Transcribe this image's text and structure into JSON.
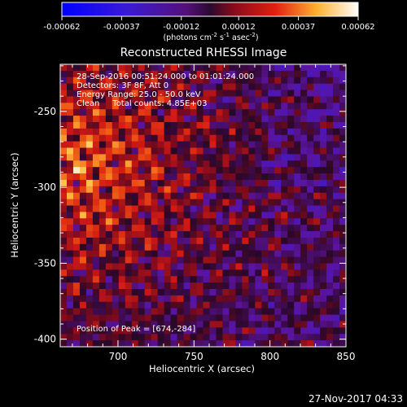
{
  "chart_data": {
    "type": "heatmap",
    "title": "Reconstructed RHESSI Image",
    "xlabel": "Heliocentric X (arcsec)",
    "ylabel": "Heliocentric Y (arcsec)",
    "xlim": [
      662,
      850
    ],
    "ylim": [
      -405,
      -219
    ],
    "xticks": [
      700,
      750,
      800,
      850
    ],
    "yticks": [
      -250,
      -300,
      -350,
      -400
    ],
    "colorbar": {
      "ticks": [
        "-0.00062",
        "-0.00037",
        "-0.00012",
        "0.00012",
        "0.00037",
        "0.00062"
      ],
      "unit_parts": [
        "(photons cm",
        "-2",
        " s",
        "-1",
        " asec",
        "-2",
        ")"
      ],
      "range": [
        -0.00062,
        0.00062
      ]
    },
    "annotations": [
      "28-Sep-2016 00:51:24.000 to 01:01:24.000",
      "Detectors: 3F 8F, Att 0",
      "Energy Range: 25.0 - 50.0 keV",
      "Clean     Total counts: 4.85E+03"
    ],
    "peak_text": "Position of Peak = [674,-284]",
    "peak": [
      674,
      -284
    ]
  },
  "footer": {
    "timestamp": "27-Nov-2017 04:33"
  },
  "colors": {
    "colorbar_low": "#0000ff",
    "colorbar_mid": "#440066",
    "colorbar_high": "#ffffff",
    "frame": "#ffffff"
  }
}
